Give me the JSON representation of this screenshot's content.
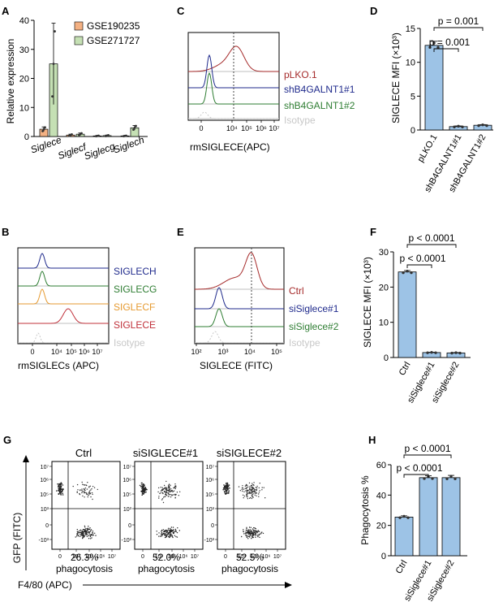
{
  "panels": {
    "A": {
      "letter": "A",
      "ylabel": "Relative expression",
      "yticks": [
        "0",
        "10",
        "20",
        "30",
        "40"
      ],
      "legend": [
        "GSE190235",
        "GSE271727"
      ],
      "xticks": [
        "Siglece",
        "Siglecf",
        "Siglecg",
        "Siglech"
      ],
      "colors": {
        "GSE190235": "#f4b183",
        "GSE271727": "#c5e0b4"
      }
    },
    "B": {
      "letter": "B",
      "xlabel": "rmSIGLECs (APC)",
      "xticks": [
        "0",
        "10⁴",
        "10⁵",
        "10⁶",
        "10⁷"
      ],
      "tracks": [
        "SIGLECH",
        "SIGLECG",
        "SIGLECF",
        "SIGLECE",
        "Isotype"
      ],
      "track_colors": [
        "#1f2a8c",
        "#2e7d32",
        "#e69a30",
        "#c0303a",
        "#c8c8c8"
      ]
    },
    "C": {
      "letter": "C",
      "xlabel": "rmSIGLECE(APC)",
      "xticks": [
        "0",
        "10⁴",
        "10⁵",
        "10⁶",
        "10⁷"
      ],
      "tracks": [
        "pLKO.1",
        "shB4GALNT1#1",
        "shB4GALNT1#2",
        "Isotype"
      ],
      "track_colors": [
        "#a52a2a",
        "#1f2a8c",
        "#2e7d32",
        "#c8c8c8"
      ]
    },
    "D": {
      "letter": "D",
      "ylabel": "SIGLECE MFI (×10³)",
      "yticks": [
        "0",
        "5",
        "10",
        "15"
      ],
      "p_top": "p = 0.001",
      "p_inner": "p = 0.001",
      "categories": [
        "pLKO.1",
        "shB4GALNT1#1",
        "shB4GALNT1#2"
      ]
    },
    "E": {
      "letter": "E",
      "xlabel": "SIGLECE (FITC)",
      "xticks": [
        "10²",
        "10³",
        "10⁴",
        "10⁵"
      ],
      "tracks": [
        "Ctrl",
        "siSiglece#1",
        "siSiglece#2",
        "Isotype"
      ],
      "track_colors": [
        "#a52a2a",
        "#1f2a8c",
        "#2e7d32",
        "#c8c8c8"
      ]
    },
    "F": {
      "letter": "F",
      "ylabel": "SIGLECE MFI (×10³)",
      "yticks": [
        "0",
        "10",
        "20",
        "30"
      ],
      "p_top": "p < 0.0001",
      "p_inner": "p < 0.0001",
      "categories": [
        "Ctrl",
        "siSiglece#1",
        "siSiglece#2"
      ]
    },
    "G": {
      "letter": "G",
      "titles": [
        "Ctrl",
        "siSIGLECE#1",
        "siSIGLECE#2"
      ],
      "percents": [
        "26.3%",
        "52.0%",
        "52.5%"
      ],
      "caption": "phagocytosis",
      "ylabel": "GFP (FITC)",
      "xlabel": "F4/80 (APC)",
      "yticks": [
        "10⁷",
        "10⁶",
        "10⁵",
        "10³",
        "0",
        "-10³"
      ],
      "xticks": [
        "0",
        "10⁴",
        "10⁵",
        "10⁶",
        "10⁷"
      ]
    },
    "H": {
      "letter": "H",
      "ylabel": "Phagocytosis %",
      "yticks": [
        "0",
        "20",
        "40",
        "60"
      ],
      "p_top": "p < 0.0001",
      "p_inner": "p < 0.0001",
      "categories": [
        "Ctrl",
        "siSiglece#1",
        "siSiglece#2"
      ]
    }
  },
  "chart_data": [
    {
      "type": "bar",
      "panel": "A",
      "categories": [
        "Siglece",
        "Siglecf",
        "Siglecg",
        "Siglech"
      ],
      "series": [
        {
          "name": "GSE190235",
          "values": [
            2.5,
            0.5,
            0.2,
            0.2
          ],
          "errors": [
            0.8,
            0.3,
            0.1,
            0.1
          ]
        },
        {
          "name": "GSE271727",
          "values": [
            25,
            0.8,
            0.3,
            3
          ],
          "errors": [
            14,
            0.4,
            0.2,
            0.8
          ]
        }
      ],
      "ylabel": "Relative expression",
      "ylim": [
        0,
        40
      ]
    },
    {
      "type": "bar",
      "panel": "D",
      "categories": [
        "pLKO.1",
        "shB4GALNT1#1",
        "shB4GALNT1#2"
      ],
      "values": [
        12.5,
        0.5,
        0.7
      ],
      "errors": [
        0.6,
        0.1,
        0.1
      ],
      "ylabel": "SIGLECE MFI (×10³)",
      "ylim": [
        0,
        15
      ],
      "color": "#9dc3e6"
    },
    {
      "type": "bar",
      "panel": "F",
      "categories": [
        "Ctrl",
        "siSiglece#1",
        "siSiglece#2"
      ],
      "values": [
        24.3,
        1.4,
        1.3
      ],
      "errors": [
        0.4,
        0.1,
        0.1
      ],
      "ylabel": "SIGLECE MFI (×10³)",
      "ylim": [
        0,
        30
      ],
      "color": "#9dc3e6"
    },
    {
      "type": "bar",
      "panel": "H",
      "categories": [
        "Ctrl",
        "siSiglece#1",
        "siSiglece#2"
      ],
      "values": [
        25.5,
        51.5,
        51.5
      ],
      "errors": [
        0.8,
        1.2,
        1.5
      ],
      "ylabel": "Phagocytosis %",
      "ylim": [
        0,
        60
      ],
      "color": "#9dc3e6"
    }
  ]
}
